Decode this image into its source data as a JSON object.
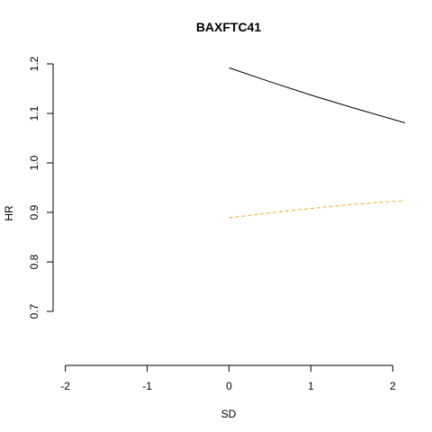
{
  "chart_data": {
    "type": "line",
    "title": "BAXFTC41",
    "xlabel": "SD",
    "ylabel": "HR",
    "xlim": [
      -2.15,
      2.15
    ],
    "ylim": [
      0.62,
      1.22
    ],
    "x_ticks": [
      "-2",
      "-1",
      "0",
      "1",
      "2"
    ],
    "y_ticks": [
      "0.7",
      "0.8",
      "0.9",
      "1.0",
      "1.1",
      "1.2"
    ],
    "grid": false,
    "series": [
      {
        "color": "#000000",
        "dash": "solid",
        "x": [
          0,
          0.5,
          1,
          1.5,
          2.15
        ],
        "y": [
          1.192,
          1.164,
          1.137,
          1.112,
          1.081
        ]
      },
      {
        "color": "#f5a623",
        "dash": "dashed",
        "x": [
          0,
          0.5,
          1,
          1.5,
          2.15
        ],
        "y": [
          0.889,
          0.899,
          0.908,
          0.916,
          0.924
        ]
      }
    ]
  }
}
